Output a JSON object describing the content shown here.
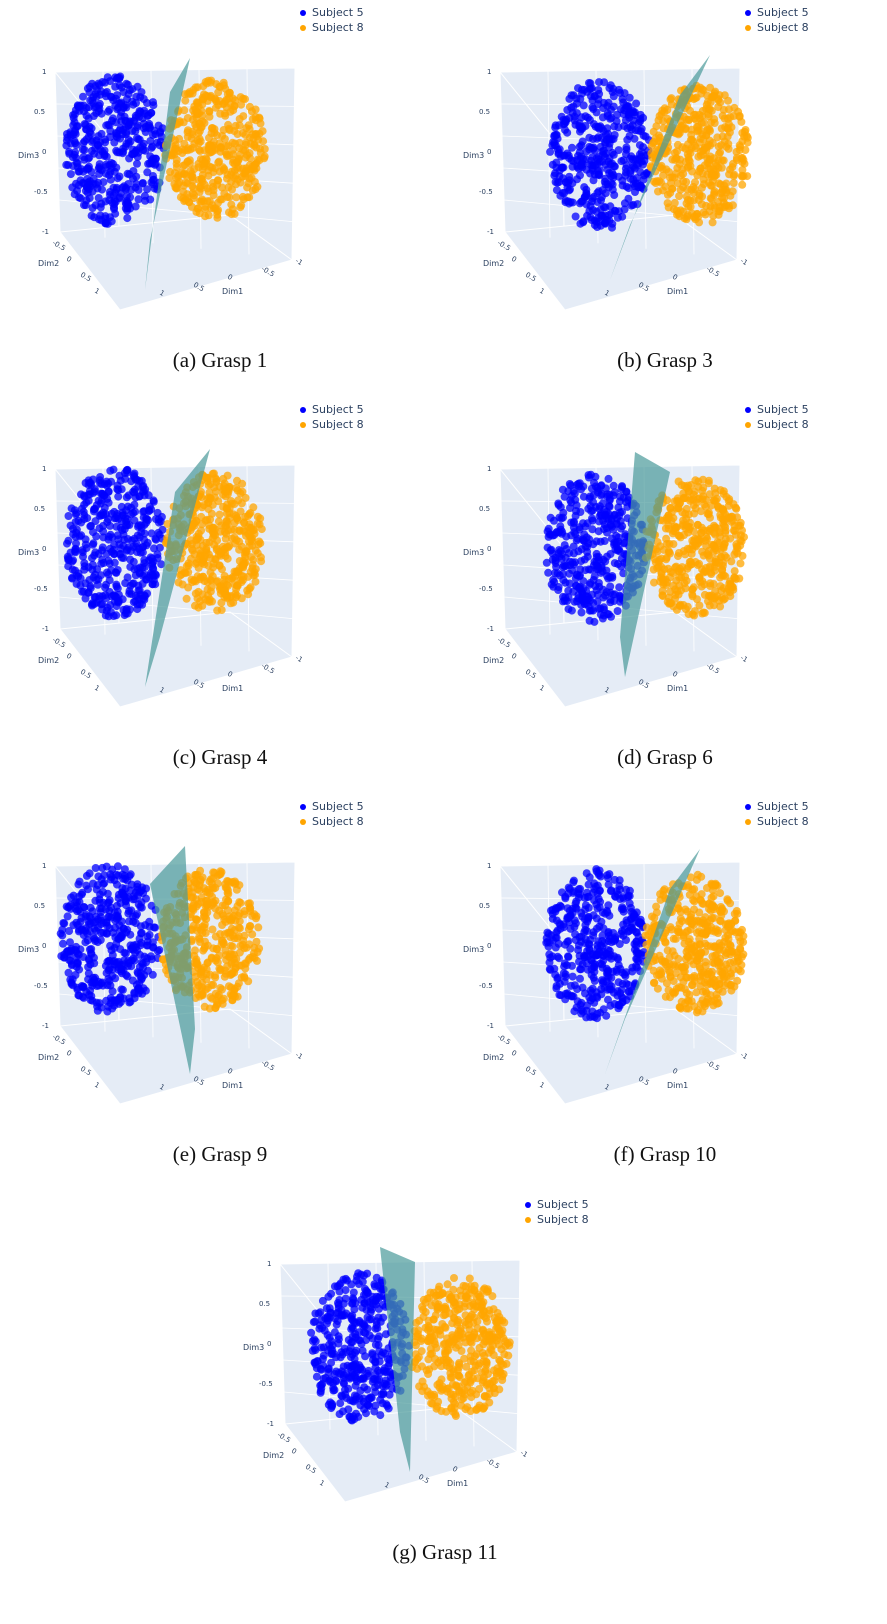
{
  "legend": {
    "items": [
      {
        "label": "Subject 5",
        "color": "#0000ff"
      },
      {
        "label": "Subject 8",
        "color": "#ffa500"
      }
    ]
  },
  "axes": {
    "x_title": "Dim1",
    "y_title": "Dim2",
    "z_title": "Dim3",
    "ticks": [
      "-1",
      "-0.5",
      "0",
      "0.5",
      "1"
    ]
  },
  "colors": {
    "scene_bg": "#e5ecf6",
    "plane": "#4a9a9a",
    "grid": "#ffffff"
  },
  "captions": {
    "a": "(a) Grasp 1",
    "b": "(b) Grasp 3",
    "c": "(c) Grasp 4",
    "d": "(d) Grasp 6",
    "e": "(e) Grasp 9",
    "f": "(f) Grasp 10",
    "g": "(g) Grasp 11"
  },
  "chart_data": [
    {
      "type": "scatter",
      "title": "(a) Grasp 1",
      "xlabel": "Dim1",
      "ylabel": "Dim2",
      "zlabel": "Dim3",
      "xlim": [
        -1,
        1
      ],
      "ylim": [
        -1,
        1
      ],
      "zlim": [
        -1,
        1
      ],
      "legend": "top-right",
      "series": [
        {
          "name": "Subject 5",
          "color": "#0000ff",
          "region": "left"
        },
        {
          "name": "Subject 8",
          "color": "#ffa500",
          "region": "right"
        }
      ],
      "separating_plane": true
    },
    {
      "type": "scatter",
      "title": "(b) Grasp 3",
      "xlabel": "Dim1",
      "ylabel": "Dim2",
      "zlabel": "Dim3",
      "xlim": [
        -1,
        1
      ],
      "ylim": [
        -1,
        1
      ],
      "zlim": [
        -1,
        1
      ],
      "legend": "top-right",
      "series": [
        {
          "name": "Subject 5",
          "color": "#0000ff",
          "region": "left"
        },
        {
          "name": "Subject 8",
          "color": "#ffa500",
          "region": "right"
        }
      ],
      "separating_plane": true
    },
    {
      "type": "scatter",
      "title": "(c) Grasp 4",
      "xlabel": "Dim1",
      "ylabel": "Dim2",
      "zlabel": "Dim3",
      "xlim": [
        -1,
        1
      ],
      "ylim": [
        -1,
        1
      ],
      "zlim": [
        -1,
        1
      ],
      "legend": "top-right",
      "series": [
        {
          "name": "Subject 5",
          "color": "#0000ff",
          "region": "left"
        },
        {
          "name": "Subject 8",
          "color": "#ffa500",
          "region": "right"
        }
      ],
      "separating_plane": true
    },
    {
      "type": "scatter",
      "title": "(d) Grasp 6",
      "xlabel": "Dim1",
      "ylabel": "Dim2",
      "zlabel": "Dim3",
      "xlim": [
        -1,
        1
      ],
      "ylim": [
        -1,
        1
      ],
      "zlim": [
        -1,
        1
      ],
      "legend": "top-right",
      "series": [
        {
          "name": "Subject 5",
          "color": "#0000ff",
          "region": "left"
        },
        {
          "name": "Subject 8",
          "color": "#ffa500",
          "region": "right"
        }
      ],
      "separating_plane": true
    },
    {
      "type": "scatter",
      "title": "(e) Grasp 9",
      "xlabel": "Dim1",
      "ylabel": "Dim2",
      "zlabel": "Dim3",
      "xlim": [
        -1,
        1
      ],
      "ylim": [
        -1,
        1
      ],
      "zlim": [
        -1,
        1
      ],
      "legend": "top-right",
      "series": [
        {
          "name": "Subject 5",
          "color": "#0000ff",
          "region": "left"
        },
        {
          "name": "Subject 8",
          "color": "#ffa500",
          "region": "right"
        }
      ],
      "separating_plane": true
    },
    {
      "type": "scatter",
      "title": "(f) Grasp 10",
      "xlabel": "Dim1",
      "ylabel": "Dim2",
      "zlabel": "Dim3",
      "xlim": [
        -1,
        1
      ],
      "ylim": [
        -1,
        1
      ],
      "zlim": [
        -1,
        1
      ],
      "legend": "top-right",
      "series": [
        {
          "name": "Subject 5",
          "color": "#0000ff",
          "region": "left"
        },
        {
          "name": "Subject 8",
          "color": "#ffa500",
          "region": "right"
        }
      ],
      "separating_plane": true
    },
    {
      "type": "scatter",
      "title": "(g) Grasp 11",
      "xlabel": "Dim1",
      "ylabel": "Dim2",
      "zlabel": "Dim3",
      "xlim": [
        -1,
        1
      ],
      "ylim": [
        -1,
        1
      ],
      "zlim": [
        -1,
        1
      ],
      "legend": "top-right",
      "series": [
        {
          "name": "Subject 5",
          "color": "#0000ff",
          "region": "left"
        },
        {
          "name": "Subject 8",
          "color": "#ffa500",
          "region": "right"
        }
      ],
      "separating_plane": true
    }
  ]
}
